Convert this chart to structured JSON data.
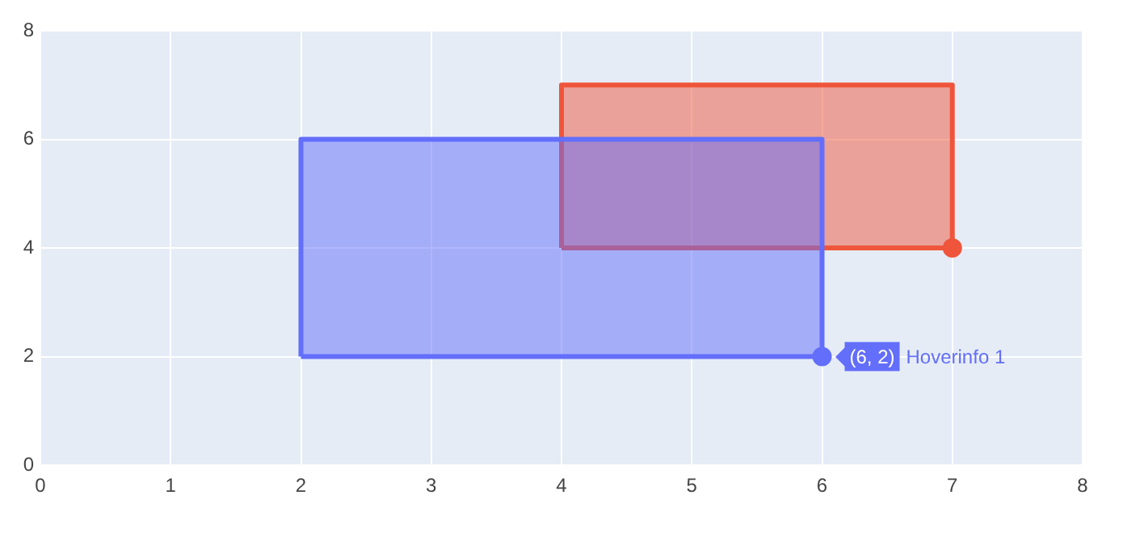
{
  "chart_data": {
    "type": "area",
    "xlim": [
      0,
      8
    ],
    "ylim": [
      0,
      8
    ],
    "xticks": [
      0,
      1,
      2,
      3,
      4,
      5,
      6,
      7,
      8
    ],
    "yticks": [
      0,
      2,
      4,
      6,
      8
    ],
    "grid": true,
    "legend": false,
    "series": [
      {
        "color": "#636efa",
        "x": [
          2,
          2,
          6,
          6,
          2
        ],
        "values": [
          2,
          6,
          6,
          2,
          2
        ]
      },
      {
        "color": "#ef553b",
        "x": [
          4,
          4,
          7,
          7,
          4
        ],
        "values": [
          4,
          7,
          7,
          4,
          4
        ]
      },
      {
        "type": "scatter",
        "marker": "circle",
        "color": "#636efa",
        "x": [
          6
        ],
        "values": [
          2
        ]
      },
      {
        "type": "scatter",
        "marker": "circle",
        "color": "#ef553b",
        "x": [
          7
        ],
        "values": [
          4
        ]
      }
    ],
    "annotations": [
      {
        "text": "(6, 2)",
        "x": 6,
        "y": 2
      },
      "Hoverinfo 1"
    ]
  }
}
